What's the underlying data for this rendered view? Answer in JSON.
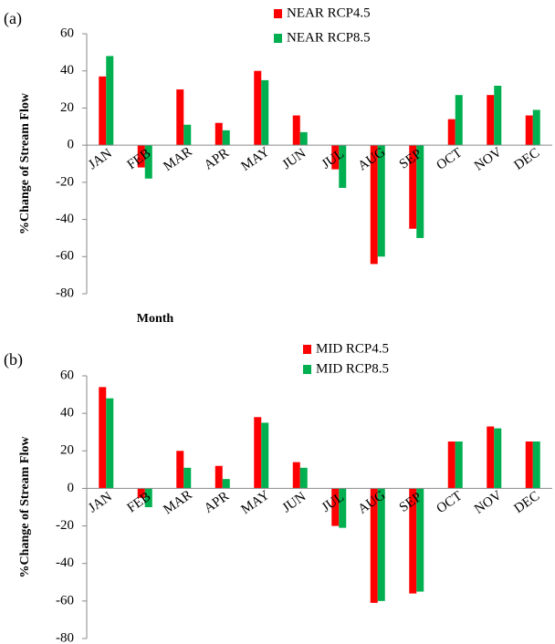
{
  "chart_data": [
    {
      "type": "bar",
      "panel_label": "(a)",
      "y_label": "%Change of Stream Flow",
      "x_label": "Month",
      "categories": [
        "JAN",
        "FEB",
        "MAR",
        "APR",
        "MAY",
        "JUN",
        "JUL",
        "AUG",
        "SEP",
        "OCT",
        "NOV",
        "DEC"
      ],
      "series": [
        {
          "name": "NEAR RCP4.5",
          "color": "#ff0000",
          "values": [
            37,
            -12,
            30,
            12,
            40,
            16,
            -13,
            -64,
            -45,
            14,
            27,
            16
          ]
        },
        {
          "name": "NEAR RCP8.5",
          "color": "#00b050",
          "values": [
            48,
            -18,
            11,
            8,
            35,
            7,
            -23,
            -60,
            -50,
            27,
            32,
            19
          ]
        }
      ],
      "ylim": [
        -80,
        60
      ],
      "yticks": [
        -80,
        -60,
        -40,
        -20,
        0,
        20,
        40,
        60
      ]
    },
    {
      "type": "bar",
      "panel_label": "(b)",
      "y_label": "%Change of Stream Flow",
      "categories": [
        "JAN",
        "FEB",
        "MAR",
        "APR",
        "MAY",
        "JUN",
        "JUL",
        "AUG",
        "SEP",
        "OCT",
        "NOV",
        "DEC"
      ],
      "series": [
        {
          "name": "MID RCP4.5",
          "color": "#ff0000",
          "values": [
            54,
            -5,
            20,
            12,
            38,
            14,
            -20,
            -61,
            -56,
            25,
            33,
            25
          ]
        },
        {
          "name": "MID RCP8.5",
          "color": "#00b050",
          "values": [
            48,
            -10,
            11,
            5,
            35,
            11,
            -21,
            -60,
            -55,
            25,
            32,
            25
          ]
        }
      ],
      "ylim": [
        -80,
        60
      ],
      "yticks": [
        -80,
        -60,
        -40,
        -20,
        0,
        20,
        40,
        60
      ]
    }
  ]
}
